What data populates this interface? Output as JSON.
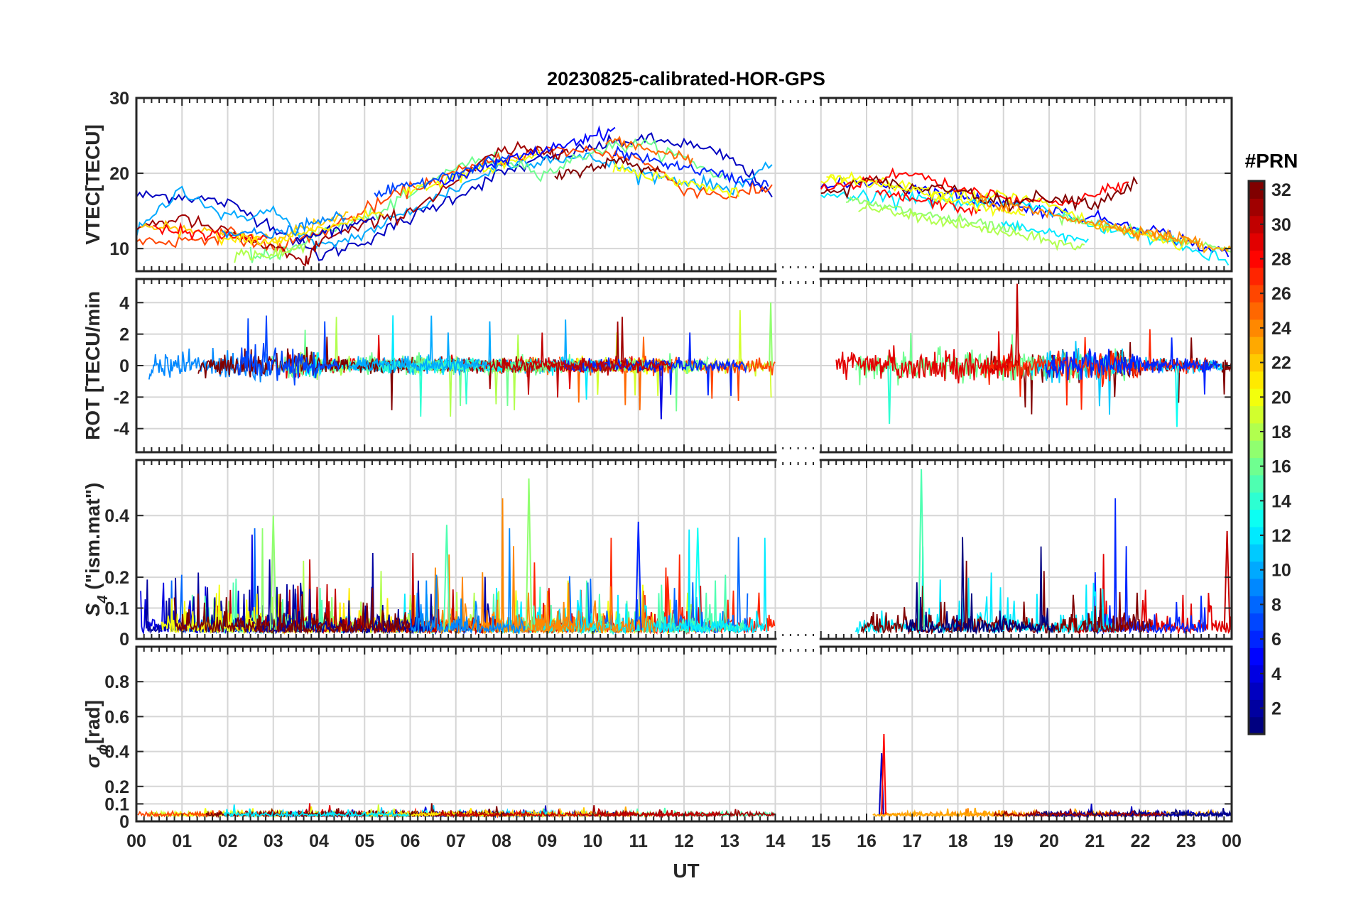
{
  "chart_data": {
    "type": "line",
    "title": "20230825-calibrated-HOR-GPS",
    "xlabel": "UT",
    "x_tick_labels": [
      "00",
      "01",
      "02",
      "03",
      "04",
      "05",
      "06",
      "07",
      "08",
      "09",
      "10",
      "11",
      "12",
      "13",
      "14",
      "15",
      "16",
      "17",
      "18",
      "19",
      "20",
      "21",
      "22",
      "23",
      "00"
    ],
    "xlim_hours": [
      0,
      24
    ],
    "data_gap_hours": [
      14.0,
      15.0
    ],
    "colorbar": {
      "label": "#PRN",
      "range": [
        1,
        32
      ],
      "tick_labels": [
        "2",
        "4",
        "6",
        "8",
        "10",
        "12",
        "14",
        "16",
        "18",
        "20",
        "22",
        "24",
        "26",
        "28",
        "30",
        "32"
      ],
      "colormap": "jet"
    },
    "panels": [
      {
        "id": "vtec",
        "ylabel": "VTEC[TECU]",
        "ylim": [
          7,
          30
        ],
        "yticks": [
          10,
          20,
          30
        ],
        "ytick_labels": [
          "10",
          "20",
          "30"
        ],
        "description_series": [
          {
            "prn": 3,
            "x": [
              0,
              1,
              2,
              3,
              4,
              5,
              6,
              7,
              8,
              9,
              10,
              11,
              12,
              13,
              14
            ],
            "y": [
              17,
              17,
              16,
              13,
              9,
              11,
              14,
              17,
              20,
              22,
              23.5,
              24.5,
              24,
              22,
              17
            ]
          },
          {
            "prn": 10,
            "x": [
              0,
              1,
              2,
              3,
              4,
              5,
              6,
              7,
              8,
              9,
              10,
              11,
              12,
              13,
              14
            ],
            "y": [
              12,
              18,
              14,
              15,
              10,
              12,
              15,
              18,
              21,
              22,
              22,
              20,
              19,
              18,
              21
            ]
          },
          {
            "prn": 16,
            "x": [
              2.5,
              3,
              4,
              5,
              6,
              7,
              8,
              9,
              10,
              11,
              12,
              13
            ],
            "y": [
              9,
              9,
              12,
              14,
              17,
              21,
              22,
              20,
              23,
              24,
              22,
              19
            ]
          },
          {
            "prn": 26,
            "x": [
              0,
              1,
              2,
              3,
              4,
              5,
              6,
              7,
              8,
              9,
              10,
              11,
              12,
              13,
              14
            ],
            "y": [
              11,
              11,
              12,
              10,
              12,
              15,
              18,
              20,
              22,
              23,
              23,
              22,
              18,
              17,
              18
            ]
          },
          {
            "prn": 31,
            "x": [
              0,
              1,
              2,
              3,
              3.7,
              4,
              5,
              6,
              7,
              8,
              9,
              9.5
            ],
            "y": [
              13,
              14,
              12,
              10,
              8,
              11,
              13,
              15,
              19,
              23,
              23,
              23
            ]
          },
          {
            "prn": 5,
            "x": [
              15,
              16,
              17,
              18,
              19,
              20,
              21,
              22,
              23,
              24
            ],
            "y": [
              18,
              19,
              18,
              17,
              16,
              15,
              14,
              13,
              11,
              9
            ]
          },
          {
            "prn": 12,
            "x": [
              15,
              16,
              17,
              18,
              19,
              20,
              21,
              22,
              23,
              24
            ],
            "y": [
              17,
              17,
              17,
              16,
              16,
              15,
              13,
              12,
              10,
              8
            ]
          },
          {
            "prn": 20,
            "x": [
              15,
              16,
              17,
              18,
              19,
              20,
              21,
              22,
              23
            ],
            "y": [
              19,
              19,
              18,
              17,
              17,
              16,
              13,
              12,
              10
            ]
          },
          {
            "prn": 28,
            "x": [
              15,
              16,
              17,
              18,
              19,
              20,
              21,
              21.8
            ],
            "y": [
              18,
              19,
              20,
              18,
              17,
              16,
              17,
              19
            ]
          },
          {
            "prn": 32,
            "x": [
              15,
              16,
              17,
              18,
              19,
              20,
              21,
              22
            ],
            "y": [
              17,
              19,
              18,
              18,
              16,
              17,
              16,
              19
            ]
          }
        ]
      },
      {
        "id": "rot",
        "ylabel": "ROT [TECU/min",
        "ylim": [
          -5.5,
          5.5
        ],
        "yticks": [
          -4,
          -2,
          0,
          2,
          4
        ],
        "ytick_labels": [
          "-4",
          "-2",
          "0",
          "2",
          "4"
        ],
        "approx_range": [
          -3.8,
          5.3
        ]
      },
      {
        "id": "s4",
        "ylabel": "S",
        "ylabel_sub": "4",
        "ylabel_suffix": " (\"ism.mat\")",
        "ylim": [
          0,
          0.58
        ],
        "yticks": [
          0,
          0.1,
          0.2,
          0.4
        ],
        "ytick_labels": [
          "0",
          "0.1",
          "0.2",
          "0.4"
        ],
        "approx_range": [
          0.0,
          0.55
        ]
      },
      {
        "id": "sigphi",
        "ylabel": "σ",
        "ylabel_sub": "ϕ",
        "ylabel_suffix": "[rad]",
        "ylim": [
          0,
          1.0
        ],
        "yticks": [
          0,
          0.1,
          0.2,
          0.4,
          0.6,
          0.8
        ],
        "ytick_labels": [
          "0",
          "0.1",
          "0.2",
          "0.4",
          "0.6",
          "0.8"
        ],
        "approx_range": [
          0.0,
          0.5
        ]
      }
    ]
  }
}
